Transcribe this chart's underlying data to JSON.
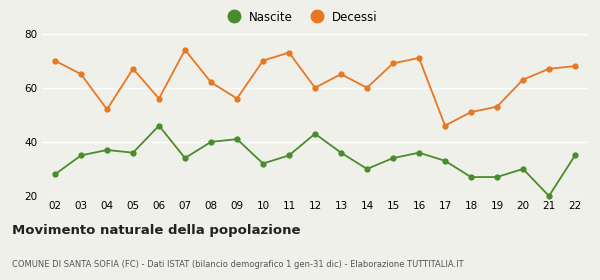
{
  "years": [
    "02",
    "03",
    "04",
    "05",
    "06",
    "07",
    "08",
    "09",
    "10",
    "11",
    "12",
    "13",
    "14",
    "15",
    "16",
    "17",
    "18",
    "19",
    "20",
    "21",
    "22"
  ],
  "nascite": [
    28,
    35,
    37,
    36,
    46,
    34,
    40,
    41,
    32,
    35,
    43,
    36,
    30,
    34,
    36,
    33,
    27,
    27,
    30,
    20,
    35
  ],
  "decessi": [
    70,
    65,
    52,
    67,
    56,
    74,
    62,
    56,
    70,
    73,
    60,
    65,
    60,
    69,
    71,
    46,
    51,
    53,
    63,
    67,
    68
  ],
  "nascite_color": "#4a8c2a",
  "decessi_color": "#e87722",
  "bg_color": "#f0f0eb",
  "grid_color": "#ffffff",
  "title": "Movimento naturale della popolazione",
  "subtitle": "COMUNE DI SANTA SOFIA (FC) - Dati ISTAT (bilancio demografico 1 gen-31 dic) - Elaborazione TUTTITALIA.IT",
  "legend_nascite": "Nascite",
  "legend_decessi": "Decessi",
  "ylim": [
    20,
    80
  ],
  "yticks": [
    20,
    40,
    60,
    80
  ]
}
